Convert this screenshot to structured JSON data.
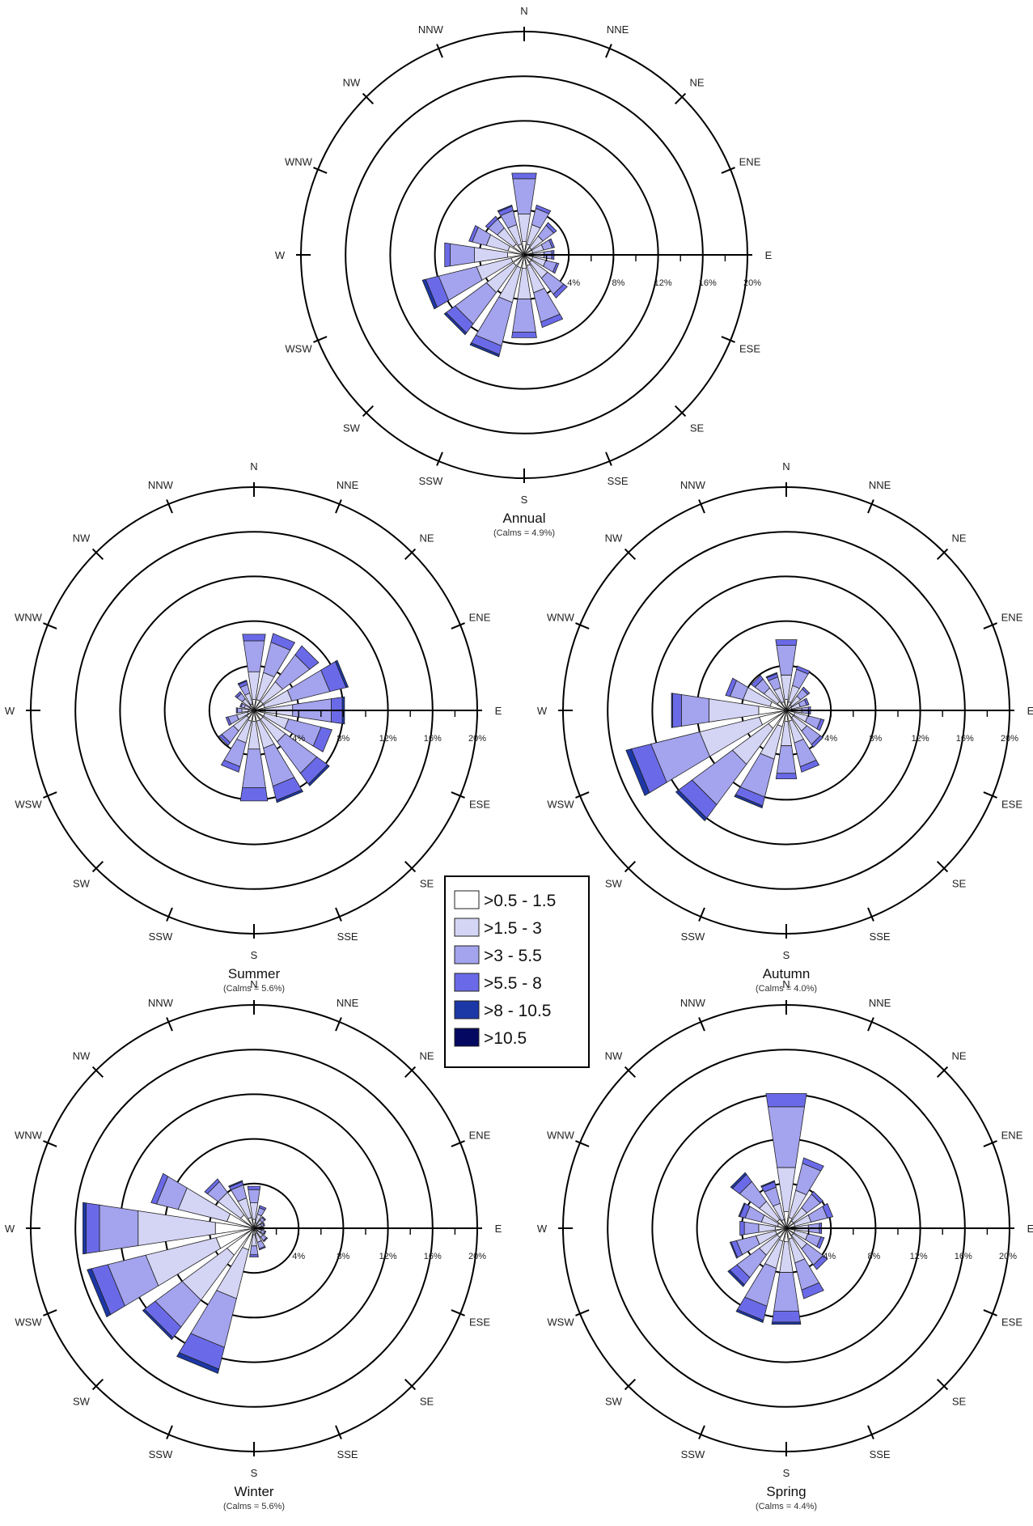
{
  "legend": {
    "bins": [
      {
        "label": ">0.5 - 1.5",
        "color": "#ffffff"
      },
      {
        "label": ">1.5 - 3",
        "color": "#d4d4f5"
      },
      {
        "label": ">3 - 5.5",
        "color": "#a3a3ee"
      },
      {
        "label": ">5.5 - 8",
        "color": "#6a6ae8"
      },
      {
        "label": ">8 - 10.5",
        "color": "#1c37a6"
      },
      {
        "label": ">10.5",
        "color": "#050860"
      }
    ]
  },
  "chart_data": [
    {
      "type": "wind-rose",
      "title": "Annual",
      "calms_label": "(Calms = 4.9%)",
      "directions": [
        "N",
        "NNE",
        "NE",
        "ENE",
        "E",
        "ESE",
        "SE",
        "SSE",
        "S",
        "SSW",
        "SW",
        "WSW",
        "W",
        "WNW",
        "NW",
        "NNW"
      ],
      "radial_ticks": [
        "4%",
        "8%",
        "12%",
        "16%",
        "20%"
      ],
      "rmax": 20,
      "rings": [
        4,
        8,
        12,
        16,
        20
      ],
      "bin_values": [
        [
          1.2,
          2.5,
          3.2,
          0.5,
          0,
          0
        ],
        [
          1.0,
          1.8,
          1.5,
          0.3,
          0,
          0
        ],
        [
          0.8,
          1.3,
          1.2,
          0.3,
          0,
          0
        ],
        [
          0.8,
          1.0,
          0.8,
          0.2,
          0,
          0
        ],
        [
          0.8,
          1.0,
          0.7,
          0.2,
          0,
          0
        ],
        [
          0.8,
          1.2,
          1.0,
          0.2,
          0,
          0
        ],
        [
          0.8,
          1.8,
          1.8,
          0.4,
          0,
          0
        ],
        [
          1.0,
          2.5,
          2.7,
          0.5,
          0,
          0
        ],
        [
          1.2,
          2.8,
          3.0,
          0.5,
          0,
          0
        ],
        [
          1.2,
          3.2,
          4.0,
          0.8,
          0.2,
          0
        ],
        [
          1.2,
          3.0,
          3.5,
          1.0,
          0.2,
          0
        ],
        [
          1.2,
          3.2,
          3.5,
          1.2,
          0.3,
          0
        ],
        [
          1.5,
          3.0,
          2.2,
          0.5,
          0,
          0
        ],
        [
          1.5,
          2.0,
          1.3,
          0.3,
          0,
          0
        ],
        [
          1.2,
          1.8,
          1.0,
          0.3,
          0,
          0
        ],
        [
          1.0,
          1.8,
          1.3,
          0.4,
          0.1,
          0
        ]
      ]
    },
    {
      "type": "wind-rose",
      "title": "Summer",
      "calms_label": "(Calms = 5.6%)",
      "directions": [
        "N",
        "NNE",
        "NE",
        "ENE",
        "E",
        "ESE",
        "SE",
        "SSE",
        "S",
        "SSW",
        "SW",
        "WSW",
        "W",
        "WNW",
        "NW",
        "NNW"
      ],
      "radial_ticks": [
        "4%",
        "8%",
        "12%",
        "16%",
        "20%"
      ],
      "rmax": 20,
      "rings": [
        4,
        8,
        12,
        16,
        20
      ],
      "bin_values": [
        [
          1.0,
          2.5,
          2.8,
          0.6,
          0,
          0
        ],
        [
          1.0,
          2.5,
          2.8,
          0.8,
          0,
          0
        ],
        [
          1.0,
          2.2,
          3.0,
          1.0,
          0,
          0
        ],
        [
          1.0,
          2.5,
          3.5,
          1.5,
          0.2,
          0
        ],
        [
          1.0,
          2.5,
          3.5,
          1.0,
          0.2,
          0
        ],
        [
          1.0,
          2.2,
          3.0,
          1.0,
          0,
          0
        ],
        [
          1.0,
          2.5,
          3.5,
          1.2,
          0.2,
          0
        ],
        [
          1.0,
          2.5,
          3.5,
          1.3,
          0.2,
          0
        ],
        [
          1.0,
          2.5,
          3.5,
          1.2,
          0,
          0
        ],
        [
          1.0,
          2.0,
          2.2,
          0.5,
          0,
          0
        ],
        [
          0.8,
          1.5,
          1.3,
          0.3,
          0,
          0
        ],
        [
          0.6,
          1.0,
          0.8,
          0.2,
          0,
          0
        ],
        [
          0.5,
          0.6,
          0.4,
          0.1,
          0,
          0
        ],
        [
          0.4,
          0.5,
          0.3,
          0.1,
          0,
          0
        ],
        [
          0.5,
          0.8,
          0.6,
          0.2,
          0,
          0
        ],
        [
          0.6,
          1.0,
          0.8,
          0.3,
          0.1,
          0
        ]
      ]
    },
    {
      "type": "wind-rose",
      "title": "Autumn",
      "calms_label": "(Calms = 4.0%)",
      "directions": [
        "N",
        "NNE",
        "NE",
        "ENE",
        "E",
        "ESE",
        "SE",
        "SSE",
        "S",
        "SSW",
        "SW",
        "WSW",
        "W",
        "WNW",
        "NW",
        "NNW"
      ],
      "radial_ticks": [
        "4%",
        "8%",
        "12%",
        "16%",
        "20%"
      ],
      "rmax": 20,
      "rings": [
        4,
        8,
        12,
        16,
        20
      ],
      "bin_values": [
        [
          1.0,
          2.2,
          2.7,
          0.5,
          0,
          0
        ],
        [
          0.8,
          1.5,
          1.5,
          0.3,
          0,
          0
        ],
        [
          0.6,
          1.0,
          0.8,
          0.2,
          0,
          0
        ],
        [
          0.5,
          0.8,
          0.6,
          0.2,
          0,
          0
        ],
        [
          0.6,
          0.8,
          0.6,
          0.2,
          0,
          0
        ],
        [
          0.8,
          1.2,
          1.2,
          0.3,
          0,
          0
        ],
        [
          0.8,
          1.5,
          1.5,
          0.3,
          0,
          0
        ],
        [
          1.0,
          2.0,
          2.2,
          0.5,
          0,
          0
        ],
        [
          1.0,
          2.2,
          2.5,
          0.5,
          0,
          0
        ],
        [
          1.5,
          3.0,
          3.5,
          0.8,
          0.2,
          0
        ],
        [
          2.0,
          4.0,
          4.5,
          1.5,
          0.3,
          0
        ],
        [
          2.5,
          5.5,
          4.5,
          1.8,
          0.5,
          0
        ],
        [
          2.5,
          4.5,
          2.5,
          0.8,
          0.1,
          0
        ],
        [
          1.5,
          2.5,
          1.2,
          0.4,
          0,
          0
        ],
        [
          1.0,
          1.5,
          1.0,
          0.4,
          0,
          0
        ],
        [
          0.8,
          1.3,
          1.0,
          0.3,
          0.1,
          0
        ]
      ]
    },
    {
      "type": "wind-rose",
      "title": "Winter",
      "calms_label": "(Calms = 5.6%)",
      "directions": [
        "N",
        "NNE",
        "NE",
        "ENE",
        "E",
        "ESE",
        "SE",
        "SSE",
        "S",
        "SSW",
        "SW",
        "WSW",
        "W",
        "WNW",
        "NW",
        "NNW"
      ],
      "radial_ticks": [
        "4%",
        "8%",
        "12%",
        "16%",
        "20%"
      ],
      "rmax": 20,
      "rings": [
        4,
        8,
        12,
        16,
        20
      ],
      "bin_values": [
        [
          0.8,
          1.5,
          1.2,
          0.3,
          0,
          0
        ],
        [
          0.5,
          0.8,
          0.6,
          0.2,
          0,
          0
        ],
        [
          0.4,
          0.5,
          0.3,
          0.1,
          0,
          0
        ],
        [
          0.3,
          0.4,
          0.2,
          0.1,
          0,
          0
        ],
        [
          0.3,
          0.4,
          0.2,
          0,
          0,
          0
        ],
        [
          0.3,
          0.4,
          0.3,
          0.1,
          0,
          0
        ],
        [
          0.4,
          0.6,
          0.4,
          0.1,
          0,
          0
        ],
        [
          0.5,
          0.8,
          0.6,
          0.1,
          0,
          0
        ],
        [
          0.6,
          1.0,
          0.8,
          0.2,
          0,
          0
        ],
        [
          2.0,
          4.5,
          4.5,
          2.0,
          0.4,
          0
        ],
        [
          3.0,
          5.0,
          3.0,
          1.2,
          0.2,
          0
        ],
        [
          3.5,
          6.5,
          3.5,
          1.5,
          0.4,
          0
        ],
        [
          3.5,
          7.0,
          3.5,
          1.2,
          0.3,
          0
        ],
        [
          2.5,
          4.5,
          2.0,
          0.5,
          0,
          0
        ],
        [
          1.5,
          2.5,
          1.2,
          0.3,
          0,
          0
        ],
        [
          1.0,
          1.8,
          1.2,
          0.3,
          0.1,
          0
        ]
      ]
    },
    {
      "type": "wind-rose",
      "title": "Spring",
      "calms_label": "(Calms = 4.4%)",
      "directions": [
        "N",
        "NNE",
        "NE",
        "ENE",
        "E",
        "ESE",
        "SE",
        "SSE",
        "S",
        "SSW",
        "SW",
        "WSW",
        "W",
        "WNW",
        "NW",
        "NNW"
      ],
      "radial_ticks": [
        "4%",
        "8%",
        "12%",
        "16%",
        "20%"
      ],
      "rmax": 20,
      "rings": [
        4,
        8,
        12,
        16,
        20
      ],
      "bin_values": [
        [
          1.5,
          4.0,
          5.5,
          1.2,
          0,
          0
        ],
        [
          1.0,
          2.5,
          2.5,
          0.5,
          0,
          0
        ],
        [
          0.8,
          1.5,
          1.5,
          0.3,
          0,
          0
        ],
        [
          0.8,
          1.5,
          1.5,
          0.5,
          0,
          0
        ],
        [
          0.8,
          1.2,
          1.0,
          0.2,
          0,
          0
        ],
        [
          0.8,
          1.2,
          1.2,
          0.3,
          0,
          0
        ],
        [
          0.8,
          1.5,
          1.8,
          0.5,
          0,
          0
        ],
        [
          1.0,
          2.2,
          2.5,
          0.8,
          0,
          0
        ],
        [
          1.2,
          2.8,
          3.5,
          1.0,
          0.2,
          0
        ],
        [
          1.2,
          2.5,
          3.5,
          1.3,
          0.2,
          0
        ],
        [
          1.0,
          2.0,
          2.5,
          0.8,
          0.2,
          0
        ],
        [
          1.0,
          1.8,
          1.8,
          0.5,
          0.1,
          0
        ],
        [
          1.0,
          1.5,
          1.3,
          0.4,
          0,
          0
        ],
        [
          0.8,
          1.5,
          1.5,
          0.5,
          0.1,
          0
        ],
        [
          1.0,
          2.0,
          2.2,
          0.8,
          0.2,
          0
        ],
        [
          0.8,
          1.5,
          1.5,
          0.5,
          0.1,
          0
        ]
      ]
    }
  ]
}
